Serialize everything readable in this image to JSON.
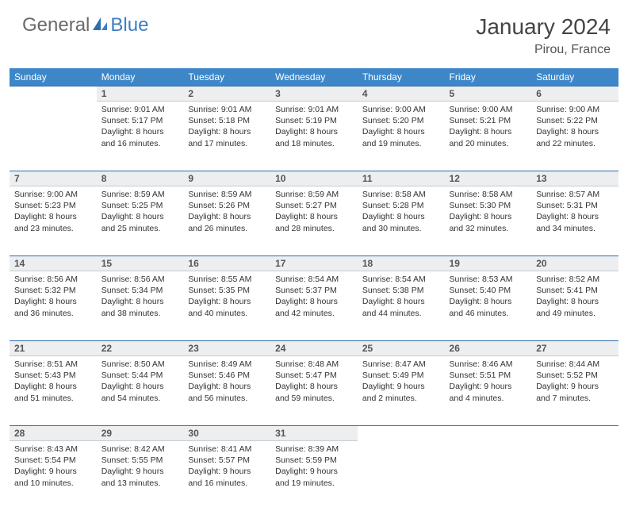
{
  "logo": {
    "text1": "General",
    "text2": "Blue"
  },
  "header": {
    "title": "January 2024",
    "location": "Pirou, France"
  },
  "colors": {
    "header_bg": "#3d87c9",
    "header_text": "#ffffff",
    "daynum_bg": "#eceef0",
    "row_border": "#2f6ea8",
    "logo_gray": "#6a6a6a",
    "logo_blue": "#3a7fc4"
  },
  "weekdays": [
    "Sunday",
    "Monday",
    "Tuesday",
    "Wednesday",
    "Thursday",
    "Friday",
    "Saturday"
  ],
  "weeks": [
    {
      "nums": [
        "",
        "1",
        "2",
        "3",
        "4",
        "5",
        "6"
      ],
      "cells": [
        null,
        {
          "sunrise": "Sunrise: 9:01 AM",
          "sunset": "Sunset: 5:17 PM",
          "day1": "Daylight: 8 hours",
          "day2": "and 16 minutes."
        },
        {
          "sunrise": "Sunrise: 9:01 AM",
          "sunset": "Sunset: 5:18 PM",
          "day1": "Daylight: 8 hours",
          "day2": "and 17 minutes."
        },
        {
          "sunrise": "Sunrise: 9:01 AM",
          "sunset": "Sunset: 5:19 PM",
          "day1": "Daylight: 8 hours",
          "day2": "and 18 minutes."
        },
        {
          "sunrise": "Sunrise: 9:00 AM",
          "sunset": "Sunset: 5:20 PM",
          "day1": "Daylight: 8 hours",
          "day2": "and 19 minutes."
        },
        {
          "sunrise": "Sunrise: 9:00 AM",
          "sunset": "Sunset: 5:21 PM",
          "day1": "Daylight: 8 hours",
          "day2": "and 20 minutes."
        },
        {
          "sunrise": "Sunrise: 9:00 AM",
          "sunset": "Sunset: 5:22 PM",
          "day1": "Daylight: 8 hours",
          "day2": "and 22 minutes."
        }
      ]
    },
    {
      "nums": [
        "7",
        "8",
        "9",
        "10",
        "11",
        "12",
        "13"
      ],
      "cells": [
        {
          "sunrise": "Sunrise: 9:00 AM",
          "sunset": "Sunset: 5:23 PM",
          "day1": "Daylight: 8 hours",
          "day2": "and 23 minutes."
        },
        {
          "sunrise": "Sunrise: 8:59 AM",
          "sunset": "Sunset: 5:25 PM",
          "day1": "Daylight: 8 hours",
          "day2": "and 25 minutes."
        },
        {
          "sunrise": "Sunrise: 8:59 AM",
          "sunset": "Sunset: 5:26 PM",
          "day1": "Daylight: 8 hours",
          "day2": "and 26 minutes."
        },
        {
          "sunrise": "Sunrise: 8:59 AM",
          "sunset": "Sunset: 5:27 PM",
          "day1": "Daylight: 8 hours",
          "day2": "and 28 minutes."
        },
        {
          "sunrise": "Sunrise: 8:58 AM",
          "sunset": "Sunset: 5:28 PM",
          "day1": "Daylight: 8 hours",
          "day2": "and 30 minutes."
        },
        {
          "sunrise": "Sunrise: 8:58 AM",
          "sunset": "Sunset: 5:30 PM",
          "day1": "Daylight: 8 hours",
          "day2": "and 32 minutes."
        },
        {
          "sunrise": "Sunrise: 8:57 AM",
          "sunset": "Sunset: 5:31 PM",
          "day1": "Daylight: 8 hours",
          "day2": "and 34 minutes."
        }
      ]
    },
    {
      "nums": [
        "14",
        "15",
        "16",
        "17",
        "18",
        "19",
        "20"
      ],
      "cells": [
        {
          "sunrise": "Sunrise: 8:56 AM",
          "sunset": "Sunset: 5:32 PM",
          "day1": "Daylight: 8 hours",
          "day2": "and 36 minutes."
        },
        {
          "sunrise": "Sunrise: 8:56 AM",
          "sunset": "Sunset: 5:34 PM",
          "day1": "Daylight: 8 hours",
          "day2": "and 38 minutes."
        },
        {
          "sunrise": "Sunrise: 8:55 AM",
          "sunset": "Sunset: 5:35 PM",
          "day1": "Daylight: 8 hours",
          "day2": "and 40 minutes."
        },
        {
          "sunrise": "Sunrise: 8:54 AM",
          "sunset": "Sunset: 5:37 PM",
          "day1": "Daylight: 8 hours",
          "day2": "and 42 minutes."
        },
        {
          "sunrise": "Sunrise: 8:54 AM",
          "sunset": "Sunset: 5:38 PM",
          "day1": "Daylight: 8 hours",
          "day2": "and 44 minutes."
        },
        {
          "sunrise": "Sunrise: 8:53 AM",
          "sunset": "Sunset: 5:40 PM",
          "day1": "Daylight: 8 hours",
          "day2": "and 46 minutes."
        },
        {
          "sunrise": "Sunrise: 8:52 AM",
          "sunset": "Sunset: 5:41 PM",
          "day1": "Daylight: 8 hours",
          "day2": "and 49 minutes."
        }
      ]
    },
    {
      "nums": [
        "21",
        "22",
        "23",
        "24",
        "25",
        "26",
        "27"
      ],
      "cells": [
        {
          "sunrise": "Sunrise: 8:51 AM",
          "sunset": "Sunset: 5:43 PM",
          "day1": "Daylight: 8 hours",
          "day2": "and 51 minutes."
        },
        {
          "sunrise": "Sunrise: 8:50 AM",
          "sunset": "Sunset: 5:44 PM",
          "day1": "Daylight: 8 hours",
          "day2": "and 54 minutes."
        },
        {
          "sunrise": "Sunrise: 8:49 AM",
          "sunset": "Sunset: 5:46 PM",
          "day1": "Daylight: 8 hours",
          "day2": "and 56 minutes."
        },
        {
          "sunrise": "Sunrise: 8:48 AM",
          "sunset": "Sunset: 5:47 PM",
          "day1": "Daylight: 8 hours",
          "day2": "and 59 minutes."
        },
        {
          "sunrise": "Sunrise: 8:47 AM",
          "sunset": "Sunset: 5:49 PM",
          "day1": "Daylight: 9 hours",
          "day2": "and 2 minutes."
        },
        {
          "sunrise": "Sunrise: 8:46 AM",
          "sunset": "Sunset: 5:51 PM",
          "day1": "Daylight: 9 hours",
          "day2": "and 4 minutes."
        },
        {
          "sunrise": "Sunrise: 8:44 AM",
          "sunset": "Sunset: 5:52 PM",
          "day1": "Daylight: 9 hours",
          "day2": "and 7 minutes."
        }
      ]
    },
    {
      "nums": [
        "28",
        "29",
        "30",
        "31",
        "",
        "",
        ""
      ],
      "cells": [
        {
          "sunrise": "Sunrise: 8:43 AM",
          "sunset": "Sunset: 5:54 PM",
          "day1": "Daylight: 9 hours",
          "day2": "and 10 minutes."
        },
        {
          "sunrise": "Sunrise: 8:42 AM",
          "sunset": "Sunset: 5:55 PM",
          "day1": "Daylight: 9 hours",
          "day2": "and 13 minutes."
        },
        {
          "sunrise": "Sunrise: 8:41 AM",
          "sunset": "Sunset: 5:57 PM",
          "day1": "Daylight: 9 hours",
          "day2": "and 16 minutes."
        },
        {
          "sunrise": "Sunrise: 8:39 AM",
          "sunset": "Sunset: 5:59 PM",
          "day1": "Daylight: 9 hours",
          "day2": "and 19 minutes."
        },
        null,
        null,
        null
      ]
    }
  ]
}
